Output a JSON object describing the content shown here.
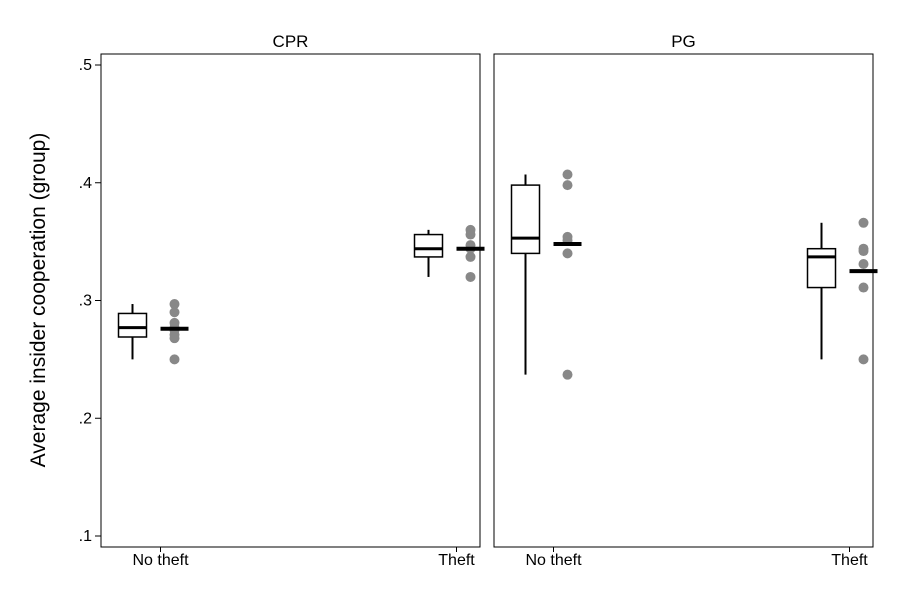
{
  "chart_data": {
    "type": "box",
    "ylabel": "Average insider cooperation (group)",
    "ylim": [
      0.1,
      0.5
    ],
    "yticks": [
      ".1",
      ".2",
      ".3",
      ".4",
      ".5"
    ],
    "ytick_values": [
      0.1,
      0.2,
      0.3,
      0.4,
      0.5
    ],
    "categories": [
      "No theft",
      "Theft"
    ],
    "point_color": "#888888",
    "panels": [
      {
        "title": "CPR",
        "groups": [
          {
            "category": "No theft",
            "box": {
              "min": 0.25,
              "q1": 0.269,
              "median": 0.277,
              "q3": 0.289,
              "max": 0.297
            },
            "points": [
              0.297,
              0.29,
              0.281,
              0.277,
              0.275,
              0.271,
              0.268,
              0.25
            ],
            "mean": 0.276
          },
          {
            "category": "Theft",
            "box": {
              "min": 0.32,
              "q1": 0.337,
              "median": 0.344,
              "q3": 0.356,
              "max": 0.36
            },
            "points": [
              0.36,
              0.356,
              0.347,
              0.344,
              0.337,
              0.32
            ],
            "mean": 0.344
          }
        ]
      },
      {
        "title": "PG",
        "groups": [
          {
            "category": "No theft",
            "box": {
              "min": 0.237,
              "q1": 0.34,
              "median": 0.353,
              "q3": 0.398,
              "max": 0.407
            },
            "points": [
              0.407,
              0.398,
              0.354,
              0.351,
              0.34,
              0.237
            ],
            "mean": 0.348
          },
          {
            "category": "Theft",
            "box": {
              "min": 0.25,
              "q1": 0.311,
              "median": 0.337,
              "q3": 0.344,
              "max": 0.366
            },
            "points": [
              0.366,
              0.344,
              0.342,
              0.331,
              0.311,
              0.25
            ],
            "mean": 0.325
          }
        ]
      }
    ]
  }
}
